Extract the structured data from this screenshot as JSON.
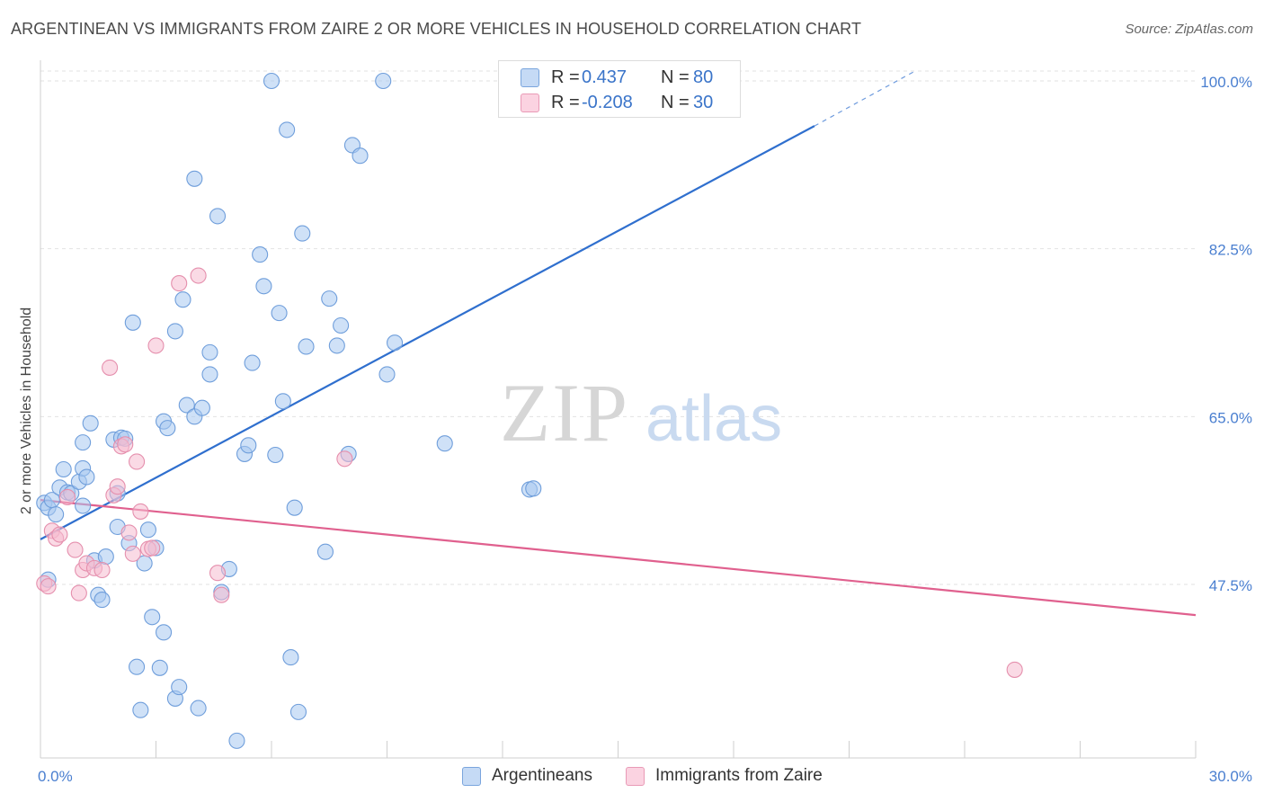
{
  "title": "ARGENTINEAN VS IMMIGRANTS FROM ZAIRE 2 OR MORE VEHICLES IN HOUSEHOLD CORRELATION CHART",
  "source": "Source: ZipAtlas.com",
  "watermark": {
    "zip": "ZIP",
    "atlas": "atlas"
  },
  "legend": {
    "r_label": "R =",
    "n_label": "N =",
    "series": [
      {
        "r": "0.437",
        "n": "80"
      },
      {
        "r": "-0.208",
        "n": "30"
      }
    ]
  },
  "chart_data": {
    "type": "scatter",
    "title": "ARGENTINEAN VS IMMIGRANTS FROM ZAIRE 2 OR MORE VEHICLES IN HOUSEHOLD CORRELATION CHART",
    "xlabel": "",
    "ylabel": "2 or more Vehicles in Household",
    "xlim": [
      0,
      30
    ],
    "ylim": [
      33,
      101
    ],
    "x_tick_labels": [
      "0.0%",
      "30.0%"
    ],
    "y_ticks": [
      47.5,
      65.0,
      82.5,
      100.0
    ],
    "y_tick_labels": [
      "47.5%",
      "65.0%",
      "82.5%",
      "100.0%"
    ],
    "grid": true,
    "legend_position": "bottom-center",
    "series": [
      {
        "name": "Argentineans",
        "color": "#a8c8f0",
        "edge": "#6f9edb",
        "trend": {
          "x": [
            0,
            20.1
          ],
          "y": [
            52.2,
            95.3
          ],
          "dashed_to": [
            22.7,
            101
          ]
        },
        "trend_color": "#2f6fce",
        "points": [
          [
            0.1,
            56
          ],
          [
            0.2,
            55.5
          ],
          [
            0.3,
            56.3
          ],
          [
            0.4,
            54.8
          ],
          [
            0.5,
            57.6
          ],
          [
            0.6,
            59.5
          ],
          [
            0.7,
            57.1
          ],
          [
            0.8,
            57
          ],
          [
            1,
            58.2
          ],
          [
            1.1,
            55.7
          ],
          [
            1.1,
            59.6
          ],
          [
            1.1,
            62.3
          ],
          [
            1.2,
            58.7
          ],
          [
            1.3,
            64.3
          ],
          [
            1.4,
            50
          ],
          [
            1.5,
            46.4
          ],
          [
            1.6,
            45.9
          ],
          [
            1.7,
            50.4
          ],
          [
            1.9,
            62.6
          ],
          [
            2,
            57
          ],
          [
            2.0,
            53.5
          ],
          [
            2.1,
            62.8
          ],
          [
            2.2,
            62.7
          ],
          [
            2.3,
            51.8
          ],
          [
            2.4,
            74.8
          ],
          [
            2.5,
            38.9
          ],
          [
            2.6,
            34.4
          ],
          [
            2.7,
            49.7
          ],
          [
            2.8,
            53.2
          ],
          [
            2.9,
            44.1
          ],
          [
            3,
            51.3
          ],
          [
            3.1,
            38.8
          ],
          [
            3.2,
            42.5
          ],
          [
            3.2,
            64.5
          ],
          [
            3.3,
            63.8
          ],
          [
            3.5,
            73.9
          ],
          [
            3.5,
            35.6
          ],
          [
            3.6,
            36.8
          ],
          [
            3.7,
            77.2
          ],
          [
            3.8,
            66.2
          ],
          [
            4.0,
            89.8
          ],
          [
            4,
            65
          ],
          [
            4.1,
            34.6
          ],
          [
            4.2,
            65.9
          ],
          [
            4.4,
            71.7
          ],
          [
            4.4,
            69.4
          ],
          [
            4.6,
            85.9
          ],
          [
            4.7,
            46.7
          ],
          [
            4.9,
            49.1
          ],
          [
            5.1,
            31.2
          ],
          [
            5.3,
            61.1
          ],
          [
            5.4,
            62
          ],
          [
            5.5,
            70.6
          ],
          [
            5.7,
            81.9
          ],
          [
            5.8,
            78.6
          ],
          [
            6,
            100
          ],
          [
            6.1,
            61
          ],
          [
            6.2,
            75.8
          ],
          [
            6.3,
            66.6
          ],
          [
            6.4,
            94.9
          ],
          [
            6.5,
            39.9
          ],
          [
            6.6,
            55.5
          ],
          [
            6.7,
            34.2
          ],
          [
            6.8,
            84.1
          ],
          [
            6.9,
            72.3
          ],
          [
            7.4,
            50.9
          ],
          [
            7.5,
            77.3
          ],
          [
            7.7,
            72.4
          ],
          [
            7.8,
            74.5
          ],
          [
            8.0,
            61.1
          ],
          [
            8.1,
            93.3
          ],
          [
            8.3,
            92.2
          ],
          [
            8.9,
            100
          ],
          [
            9,
            69.4
          ],
          [
            9.2,
            72.7
          ],
          [
            10.5,
            62.2
          ],
          [
            12.7,
            57.4
          ],
          [
            12.8,
            57.5
          ],
          [
            17.7,
            100
          ],
          [
            0.2,
            48
          ]
        ]
      },
      {
        "name": "Immigrants from Zaire",
        "color": "#f6bcd0",
        "edge": "#e58fad",
        "trend": {
          "x": [
            0,
            30
          ],
          "y": [
            56.3,
            44.3
          ]
        },
        "trend_color": "#e0608e",
        "points": [
          [
            0.1,
            47.6
          ],
          [
            0.3,
            53.1
          ],
          [
            0.4,
            52.3
          ],
          [
            0.5,
            52.7
          ],
          [
            0.7,
            56.6
          ],
          [
            0.9,
            51.1
          ],
          [
            1,
            46.6
          ],
          [
            1.1,
            49
          ],
          [
            1.2,
            49.7
          ],
          [
            1.4,
            49.2
          ],
          [
            1.6,
            49
          ],
          [
            1.8,
            70.1
          ],
          [
            1.9,
            56.8
          ],
          [
            2,
            57.7
          ],
          [
            2.1,
            61.9
          ],
          [
            2.2,
            62.1
          ],
          [
            2.3,
            52.9
          ],
          [
            2.4,
            50.7
          ],
          [
            2.5,
            60.3
          ],
          [
            2.6,
            55.1
          ],
          [
            2.8,
            51.2
          ],
          [
            2.9,
            51.3
          ],
          [
            3.0,
            72.4
          ],
          [
            3.6,
            78.9
          ],
          [
            4.1,
            79.7
          ],
          [
            4.6,
            48.7
          ],
          [
            4.7,
            46.4
          ],
          [
            7.9,
            60.6
          ],
          [
            25.3,
            38.6
          ],
          [
            0.2,
            47.3
          ]
        ]
      }
    ]
  }
}
